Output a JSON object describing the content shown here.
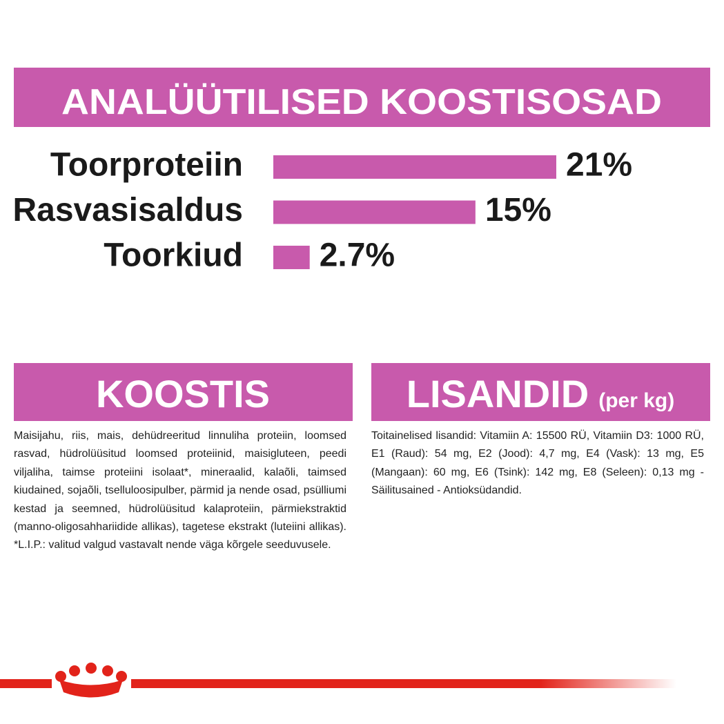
{
  "chart_data": {
    "type": "bar",
    "title": "ANALÜÜTILISED KOOSTISOSAD",
    "categories": [
      "Toorproteiin",
      "Rasvasisaldus",
      "Toorkiud"
    ],
    "values": [
      21,
      15,
      2.7
    ],
    "value_labels": [
      "21%",
      "15%",
      "2.7%"
    ],
    "color": "#c85aac"
  },
  "koostis": {
    "title": "KOOSTIS",
    "text": "Maisijahu, riis, mais, dehüdreeritud linnuliha proteiin, loomsed rasvad, hüdrolüüsitud loomsed proteiinid, maisigluteen, peedi viljaliha, taimse proteiini isolaat*, mineraalid, kalaõli, taimsed kiudained, sojaõli, tselluloosipulber, pärmid ja nende osad, psülliumi kestad ja seemned, hüdrolüüsitud kalaproteiin, pärmiekstraktid (manno-oligosahhariidide allikas), tagetese ekstrakt (luteiini allikas). *L.I.P.: valitud valgud vastavalt nende väga kõrgele seeduvusele."
  },
  "lisandid": {
    "title": "LISANDID",
    "subtitle": "(per kg)",
    "text": "Toitainelised lisandid: Vitamiin A: 15500 RÜ, Vitamiin D3: 1000 RÜ, E1 (Raud): 54 mg, E2 (Jood): 4,7 mg, E4 (Vask): 13 mg, E5 (Mangaan): 60 mg, E6 (Tsink): 142 mg, E8 (Seleen): 0,13 mg - Säilitusained - Antioksüdandid."
  }
}
